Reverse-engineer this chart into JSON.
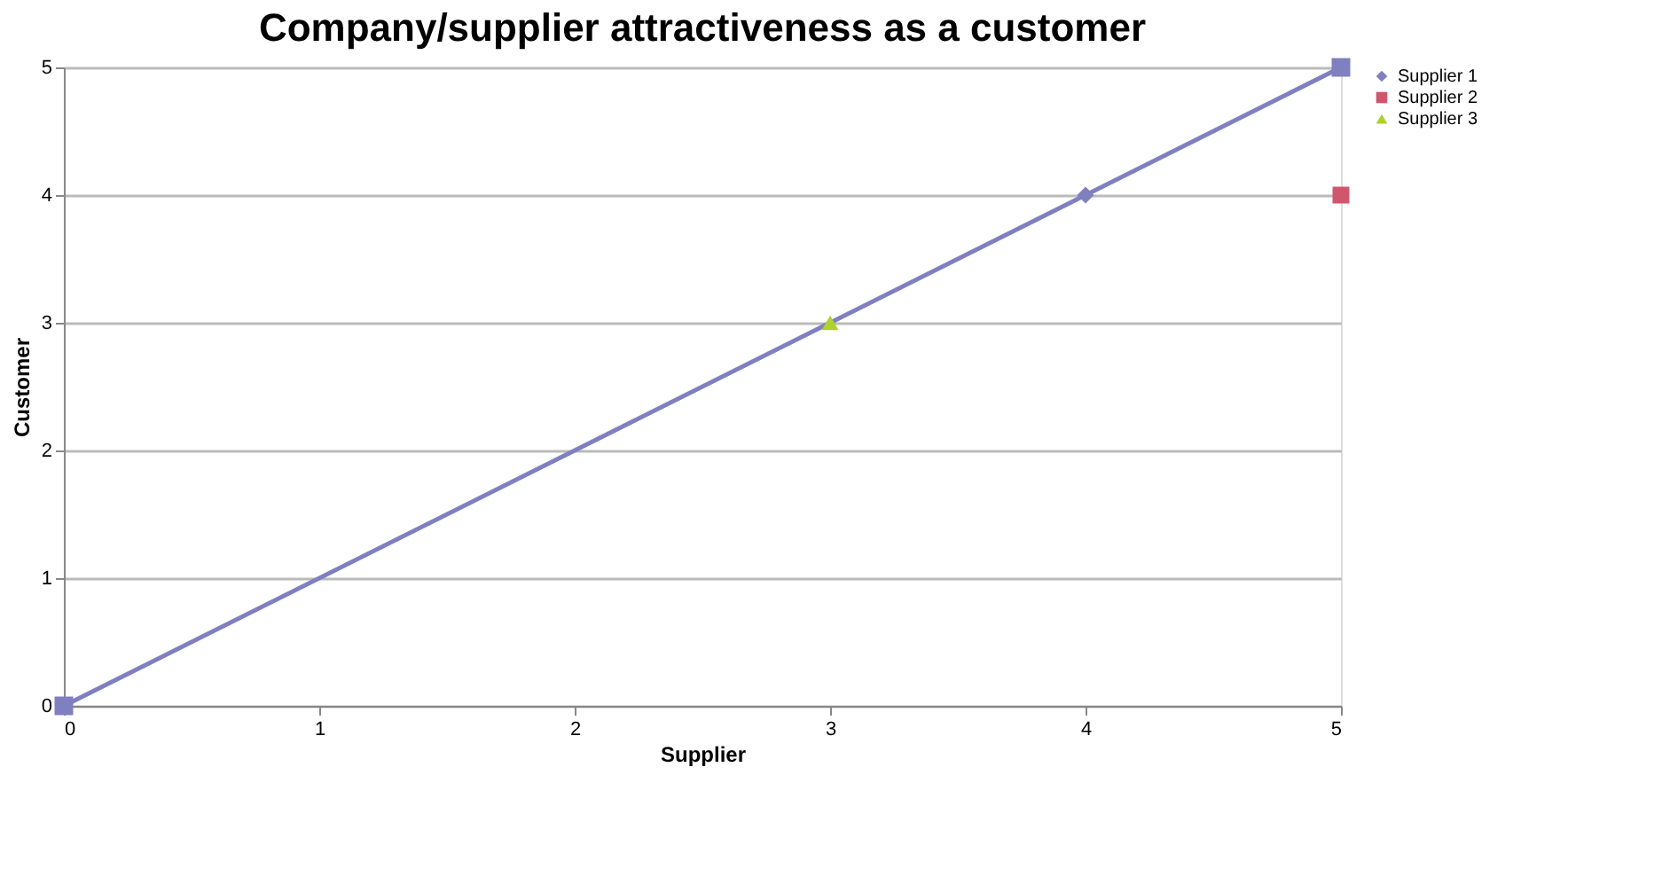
{
  "chart_data": {
    "type": "scatter",
    "title": "Company/supplier attractiveness as a customer",
    "xlabel": "Supplier",
    "ylabel": "Customer",
    "xlim": [
      0,
      5
    ],
    "xticks": [
      0,
      1,
      2,
      3,
      4,
      5
    ],
    "ylim": [
      0,
      5
    ],
    "yticks": [
      0,
      1,
      2,
      3,
      4,
      5
    ],
    "grid": "y",
    "legend": "right",
    "series": [
      {
        "type": "line",
        "color": "#8080c0",
        "marker": "square",
        "x": [
          0,
          5
        ],
        "values": [
          0,
          5
        ]
      },
      {
        "name": "Supplier 1",
        "color": "#8080c0",
        "marker": "diamond",
        "x": [
          4
        ],
        "values": [
          4
        ]
      },
      {
        "name": "Supplier 2",
        "color": "#d0566e",
        "marker": "square",
        "x": [
          5
        ],
        "values": [
          4
        ]
      },
      {
        "name": "Supplier 3",
        "color": "#b0d030",
        "marker": "triangle",
        "x": [
          3
        ],
        "values": [
          3
        ]
      }
    ]
  }
}
